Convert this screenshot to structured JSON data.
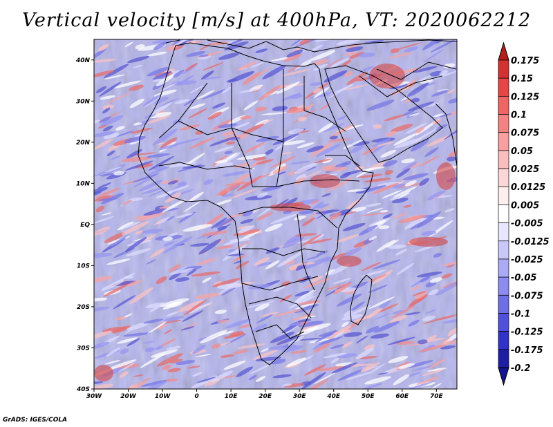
{
  "title": "Vertical velocity [m/s] at 400hPa, VT: 2020062212",
  "credit": "GrADS: IGES/COLA",
  "map": {
    "lon_range": [
      -30,
      76
    ],
    "lat_range": [
      -40,
      45
    ],
    "lat_ticks": [
      {
        "value": 40,
        "label": "40N"
      },
      {
        "value": 30,
        "label": "30N"
      },
      {
        "value": 20,
        "label": "20N"
      },
      {
        "value": 10,
        "label": "10N"
      },
      {
        "value": 0,
        "label": "EQ"
      },
      {
        "value": -10,
        "label": "10S"
      },
      {
        "value": -20,
        "label": "20S"
      },
      {
        "value": -30,
        "label": "30S"
      },
      {
        "value": -40,
        "label": "40S"
      }
    ],
    "lon_ticks": [
      {
        "value": -30,
        "label": "30W"
      },
      {
        "value": -20,
        "label": "20W"
      },
      {
        "value": -10,
        "label": "10W"
      },
      {
        "value": 0,
        "label": "0"
      },
      {
        "value": 10,
        "label": "10E"
      },
      {
        "value": 20,
        "label": "20E"
      },
      {
        "value": 30,
        "label": "30E"
      },
      {
        "value": 40,
        "label": "40E"
      },
      {
        "value": 50,
        "label": "50E"
      },
      {
        "value": 60,
        "label": "60E"
      },
      {
        "value": 70,
        "label": "70E"
      }
    ]
  },
  "colorbar": {
    "labels": [
      "0.175",
      "0.15",
      "0.125",
      "0.1",
      "0.075",
      "0.05",
      "0.025",
      "0.0125",
      "0.005",
      "-0.005",
      "-0.0125",
      "-0.025",
      "-0.05",
      "-0.075",
      "-0.1",
      "-0.125",
      "-0.175",
      "-0.2"
    ],
    "colors": [
      "#b41e1e",
      "#d23232",
      "#e64646",
      "#f06464",
      "#f58282",
      "#f8a0a0",
      "#fbbebe",
      "#fdd7d7",
      "#ffeeee",
      "#ffffff",
      "#e6e6ff",
      "#c8c8fa",
      "#aaaaf5",
      "#8c8cf0",
      "#6e6ee6",
      "#5050dc",
      "#3232c8",
      "#1e1ea5",
      "#14148c"
    ]
  }
}
